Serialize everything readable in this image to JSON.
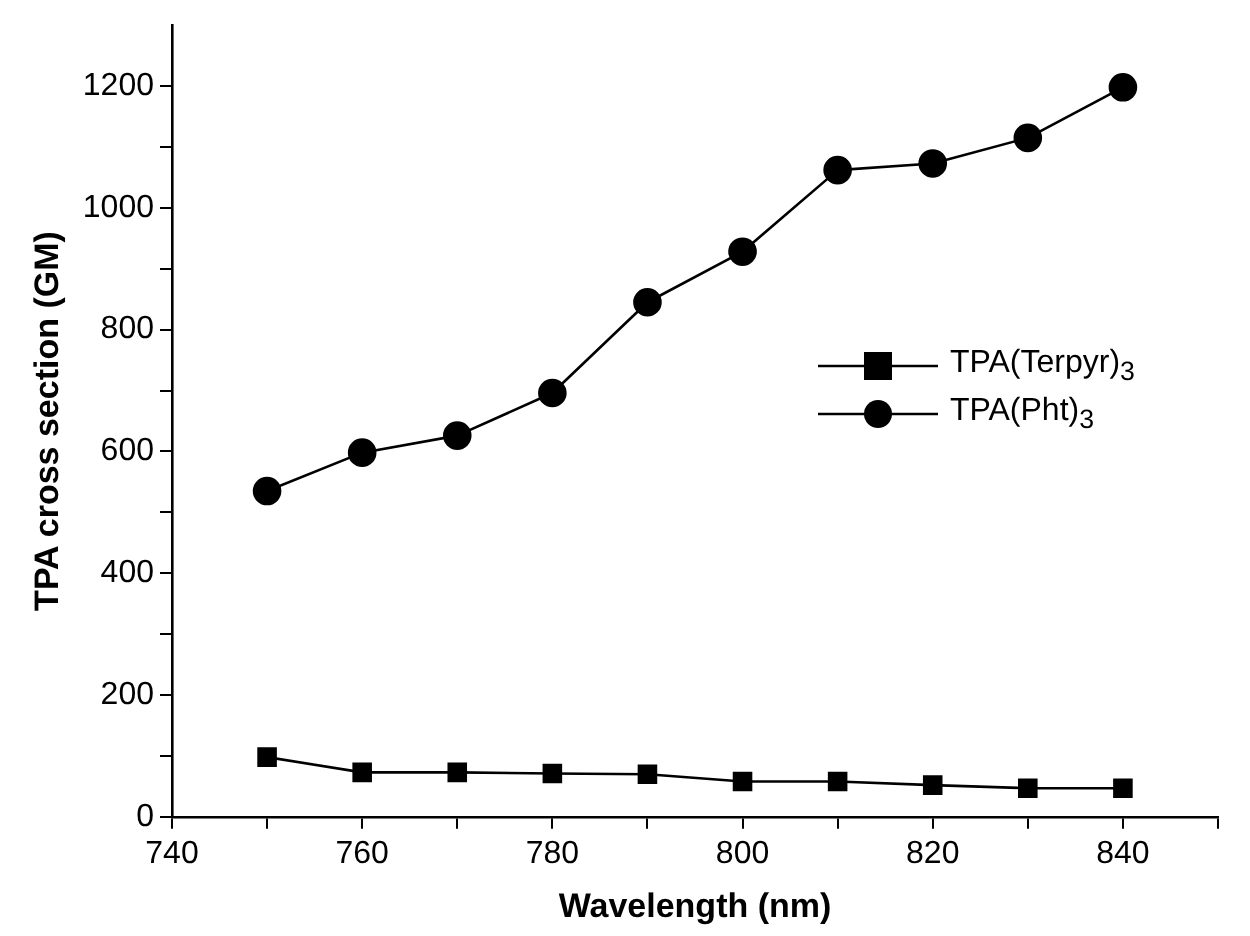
{
  "chart_data": {
    "type": "line",
    "xlabel": "Wavelength (nm)",
    "ylabel": "TPA cross section (GM)",
    "x": [
      750,
      760,
      770,
      780,
      790,
      800,
      810,
      820,
      830,
      840
    ],
    "series": [
      {
        "name": "TPA(Terpyr)$_{3}$",
        "color": "#000000",
        "marker": "square",
        "values": [
          98,
          73,
          73,
          71,
          70,
          58,
          58,
          52,
          47,
          47
        ]
      },
      {
        "name": "TPA(Pht)$_{3}$",
        "color": "#000000",
        "marker": "circle",
        "values": [
          535,
          598,
          626,
          696,
          845,
          928,
          1062,
          1073,
          1115,
          1198
        ]
      }
    ],
    "xlim": [
      740,
      850
    ],
    "xticks": [
      740,
      {
        "value": 750,
        "label": null
      },
      760,
      {
        "value": 770,
        "label": null
      },
      780,
      {
        "value": 790,
        "label": null
      },
      800,
      {
        "value": 810,
        "label": null
      },
      820,
      {
        "value": 830,
        "label": null
      },
      840,
      {
        "value": 850,
        "label": null
      }
    ],
    "ylim": [
      0,
      1300
    ],
    "yticks": [
      0,
      {
        "value": 100,
        "label": null
      },
      200,
      {
        "value": 300,
        "label": null
      },
      400,
      {
        "value": 500,
        "label": null
      },
      600,
      {
        "value": 700,
        "label": null
      },
      800,
      {
        "value": 900,
        "label": null
      },
      1000,
      {
        "value": 1100,
        "label": null
      },
      1200
    ],
    "grid": false,
    "legend": "right",
    "line_style": "solid"
  }
}
